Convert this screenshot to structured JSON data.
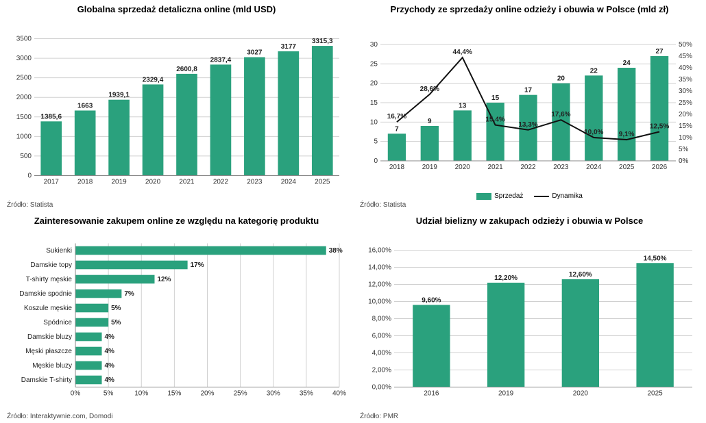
{
  "colors": {
    "bar": "#2aa17d",
    "line": "#111111",
    "grid": "#d0d0d0",
    "axis": "#888888",
    "bg": "#ffffff",
    "text": "#222222"
  },
  "chart1": {
    "type": "bar",
    "title": "Globalna sprzedaż detaliczna online (mld USD)",
    "categories": [
      "2017",
      "2018",
      "2019",
      "2020",
      "2021",
      "2022",
      "2023",
      "2024",
      "2025"
    ],
    "values": [
      1385.6,
      1663,
      1939.1,
      2329.4,
      2600.8,
      2837.4,
      3027,
      3177,
      3315.3
    ],
    "value_labels": [
      "1385,6",
      "1663",
      "1939,1",
      "2329,4",
      "2600,8",
      "2837,4",
      "3027",
      "3177",
      "3315,3"
    ],
    "ylim": [
      0,
      3500
    ],
    "ytick_step": 500,
    "bar_color": "#2aa17d",
    "source": "Źródło: Statista"
  },
  "chart2": {
    "type": "bar+line",
    "title": "Przychody ze sprzedaży  online odzieży i obuwia w Polsce (mld zł)",
    "categories": [
      "2018",
      "2019",
      "2020",
      "2021",
      "2022",
      "2023",
      "2024",
      "2025",
      "2026"
    ],
    "bar_values": [
      7,
      9,
      13,
      15,
      17,
      20,
      22,
      24,
      27
    ],
    "bar_labels": [
      "7",
      "9",
      "13",
      "15",
      "17",
      "20",
      "22",
      "24",
      "27"
    ],
    "line_values": [
      16.7,
      28.6,
      44.4,
      15.4,
      13.3,
      17.6,
      10.0,
      9.1,
      12.5
    ],
    "line_labels": [
      "16,7%",
      "28,6%",
      "44,4%",
      "15,4%",
      "13,3%",
      "17,6%",
      "10,0%",
      "9,1%",
      "12,5%"
    ],
    "ylim_left": [
      0,
      30
    ],
    "ytick_left": 5,
    "ylim_right": [
      0,
      50
    ],
    "ytick_right": 5,
    "bar_color": "#2aa17d",
    "line_color": "#111111",
    "legend": {
      "bar": "Sprzedaż",
      "line": "Dynamika"
    },
    "source": "Źródło: Statista"
  },
  "chart3": {
    "type": "hbar",
    "title": "Zainteresowanie zakupem online ze względu na kategorię produktu",
    "categories": [
      "Sukienki",
      "Damskie topy",
      "T-shirty męskie",
      "Damskie spodnie",
      "Koszule męskie",
      "Spódnice",
      "Damskie bluzy",
      "Męski płaszcze",
      "Męskie bluzy",
      "Damskie T-shirty"
    ],
    "values": [
      38,
      17,
      12,
      7,
      5,
      5,
      4,
      4,
      4,
      4
    ],
    "value_labels": [
      "38%",
      "17%",
      "12%",
      "7%",
      "5%",
      "5%",
      "4%",
      "4%",
      "4%",
      "4%"
    ],
    "xlim": [
      0,
      40
    ],
    "xtick_step": 5,
    "xtick_labels": [
      "0%",
      "5%",
      "10%",
      "15%",
      "20%",
      "25%",
      "30%",
      "35%",
      "40%"
    ],
    "bar_color": "#2aa17d",
    "source": "Źródło: Interaktywnie.com, Domodi"
  },
  "chart4": {
    "type": "bar",
    "title": "Udział bielizny w zakupach odzieży i obuwia w Polsce",
    "categories": [
      "2016",
      "2019",
      "2020",
      "2025"
    ],
    "values": [
      9.6,
      12.2,
      12.6,
      14.5
    ],
    "value_labels": [
      "9,60%",
      "12,20%",
      "12,60%",
      "14,50%"
    ],
    "ylim": [
      0,
      16
    ],
    "ytick_step": 2,
    "ytick_labels": [
      "0,00%",
      "2,00%",
      "4,00%",
      "6,00%",
      "8,00%",
      "10,00%",
      "12,00%",
      "14,00%",
      "16,00%"
    ],
    "bar_color": "#2aa17d",
    "source": "Źródło: PMR"
  }
}
